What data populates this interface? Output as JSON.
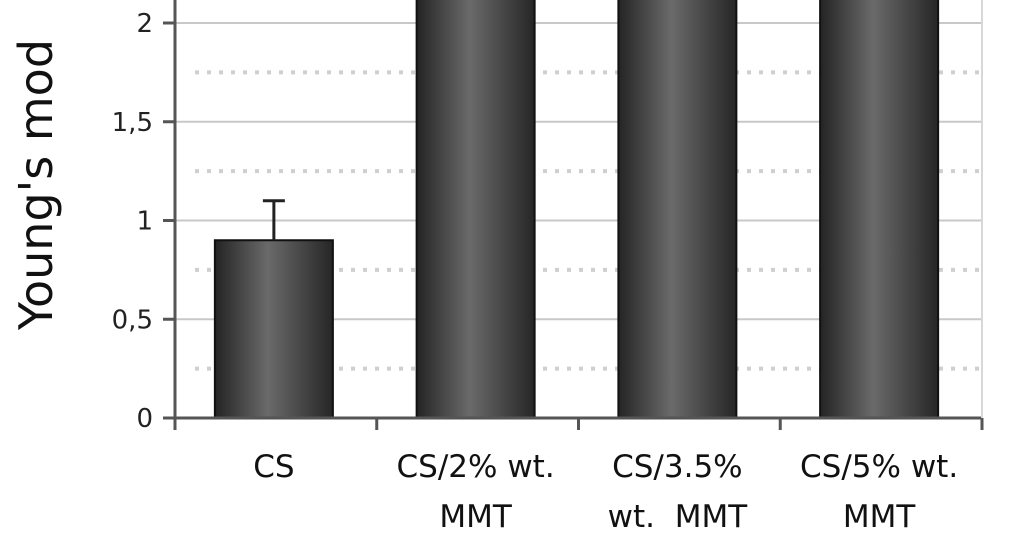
{
  "chart_data": {
    "type": "bar",
    "title": "",
    "ylabel": "Young's mod",
    "xlabel": "",
    "categories": [
      [
        "CS"
      ],
      [
        "CS/2% wt.",
        "MMT"
      ],
      [
        "CS/3.5%",
        "wt.  MMT"
      ],
      [
        "CS/5% wt.",
        "MMT"
      ]
    ],
    "series": [
      {
        "values": [
          0.9,
          2.2,
          2.2,
          2.2
        ],
        "errors": [
          0.2,
          null,
          null,
          null
        ]
      }
    ],
    "y_ticks": [
      "0",
      "0,5",
      "1",
      "1,5",
      "2"
    ],
    "y_tick_values": [
      0,
      0.5,
      1,
      1.5,
      2
    ],
    "ylim": [
      0,
      2.2
    ],
    "grid": "horizontal",
    "colors": {
      "bar": "#3a3a3a",
      "bar_highlight": "#6a6a6a",
      "grid": "#c8c8c8",
      "axis": "#555555"
    }
  }
}
